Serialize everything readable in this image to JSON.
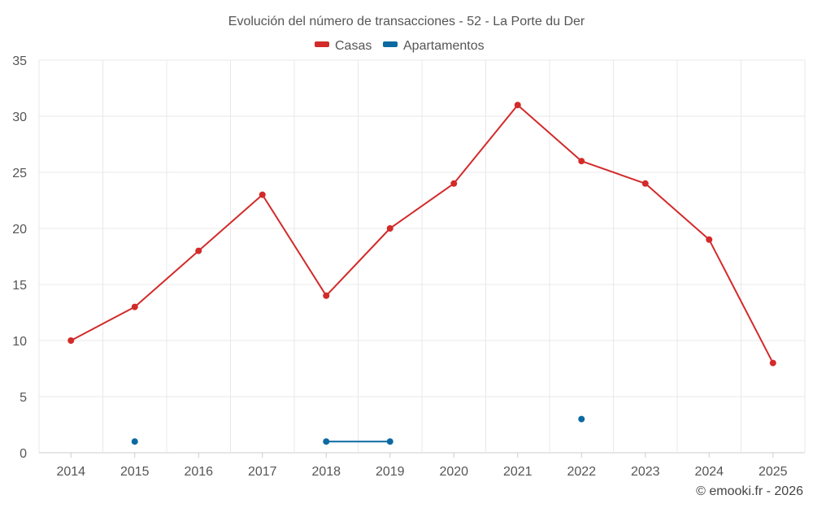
{
  "chart_data": {
    "type": "line",
    "title": "Evolución del número de transacciones - 52 - La Porte du Der",
    "categories": [
      "2014",
      "2015",
      "2016",
      "2017",
      "2018",
      "2019",
      "2020",
      "2021",
      "2022",
      "2023",
      "2024",
      "2025"
    ],
    "ylim": [
      0,
      35
    ],
    "yticks": [
      0,
      5,
      10,
      15,
      20,
      25,
      30,
      35
    ],
    "grid": true,
    "legend_position": "top-center",
    "series": [
      {
        "name": "Casas",
        "color": "#d32a2a",
        "values": [
          10,
          13,
          18,
          23,
          14,
          20,
          24,
          31,
          26,
          24,
          19,
          8
        ]
      },
      {
        "name": "Apartamentos",
        "color": "#0b6aa2",
        "values": [
          null,
          1,
          null,
          null,
          1,
          1,
          null,
          null,
          3,
          null,
          null,
          null
        ]
      }
    ],
    "credit": "© emooki.fr - 2026"
  }
}
